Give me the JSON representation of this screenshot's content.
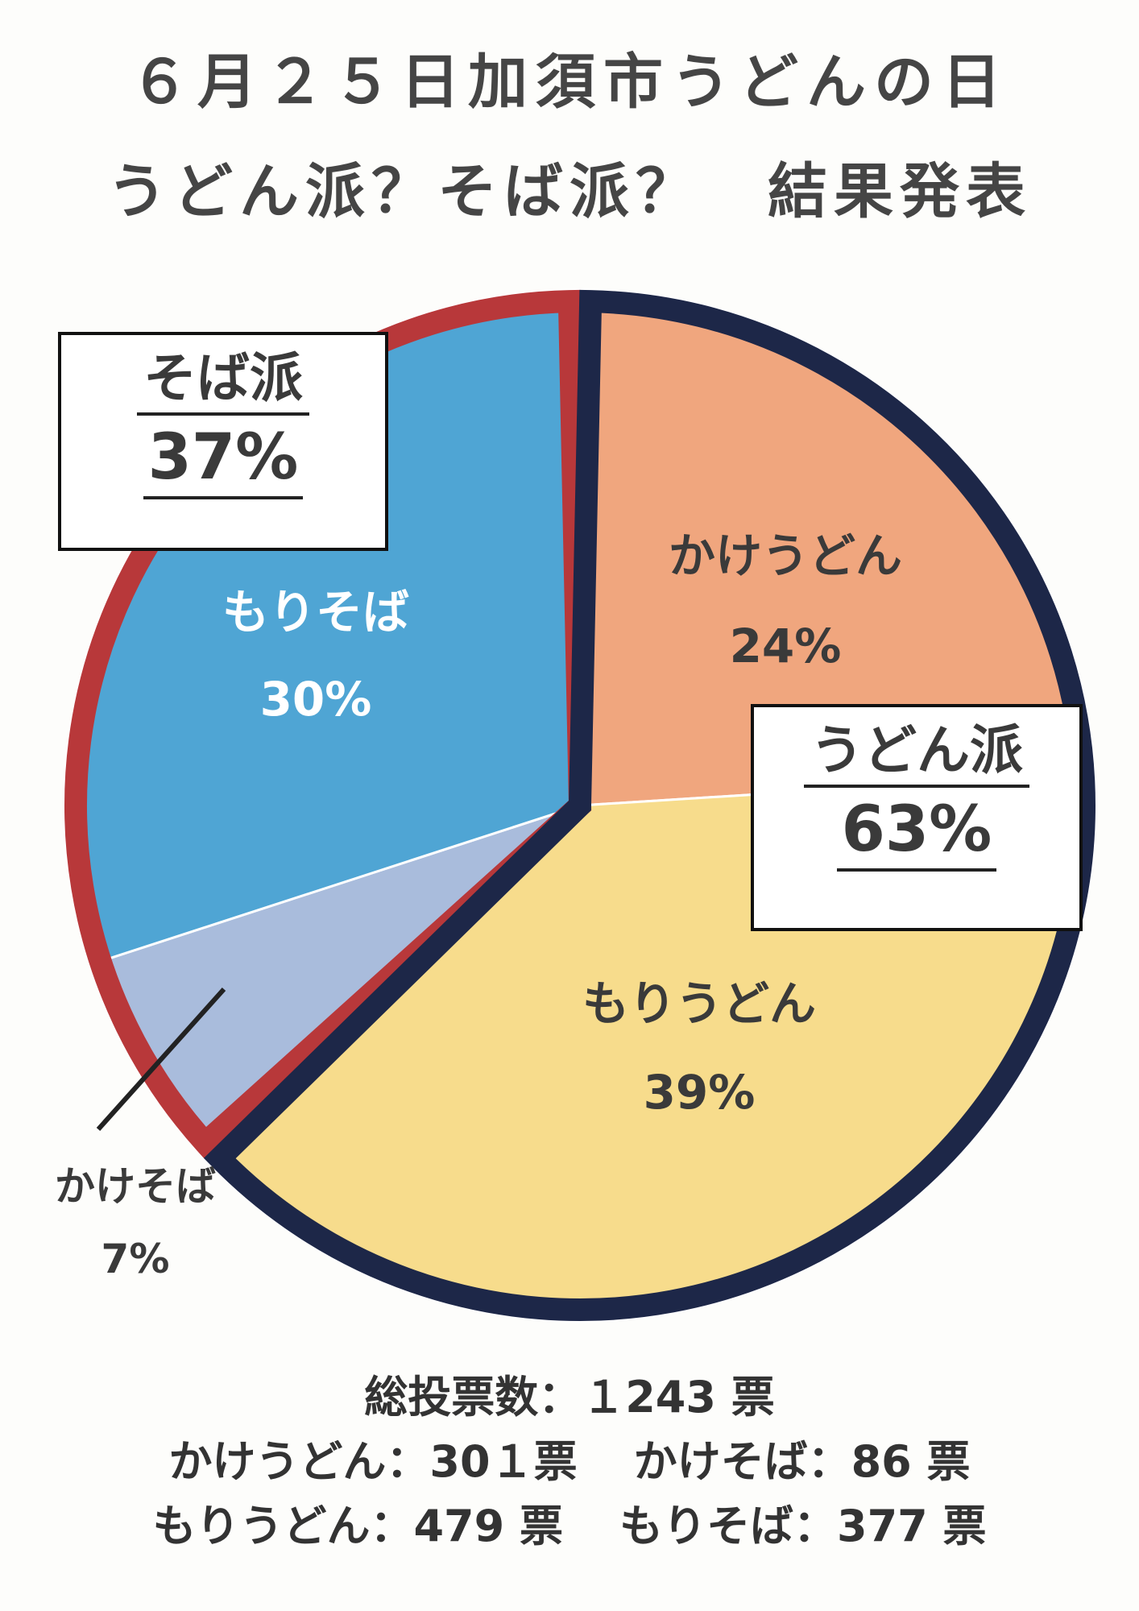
{
  "header": {
    "title_line1": "６月２５日加須市うどんの日",
    "title_line2": "うどん派？そば派？　結果発表"
  },
  "chart_data": {
    "type": "pie",
    "title": "うどん派？そば派？　結果発表",
    "slices": [
      {
        "name": "かけうどん",
        "percent_label": "24%",
        "percent": 24,
        "votes": 301,
        "color": "#f0a67e"
      },
      {
        "name": "もりうどん",
        "percent_label": "39%",
        "percent": 39,
        "votes": 479,
        "color": "#f7dc8c"
      },
      {
        "name": "かけそば",
        "percent_label": "7%",
        "percent": 7,
        "votes": 86,
        "color": "#a9bcdc"
      },
      {
        "name": "もりそば",
        "percent_label": "30%",
        "percent": 30,
        "votes": 377,
        "color": "#4fa5d4"
      }
    ],
    "groups": [
      {
        "name": "うどん派",
        "percent_label": "63%",
        "percent": 63,
        "outline_color": "#1d2748"
      },
      {
        "name": "そば派",
        "percent_label": "37%",
        "percent": 37,
        "outline_color": "#b8383a"
      }
    ]
  },
  "footer": {
    "total_line": "総投票数：１243 票",
    "counts_line1_a": "かけうどん：30１票",
    "counts_line1_b": "かけそば：86 票",
    "counts_line2_a": "もりうどん：479 票",
    "counts_line2_b": "もりそば：377 票"
  }
}
